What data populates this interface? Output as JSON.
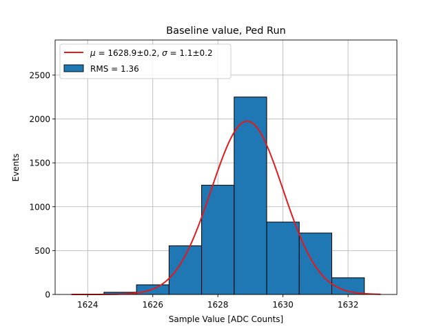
{
  "chart_data": {
    "type": "bar",
    "title": "Baseline value, Ped Run",
    "xlabel": "Sample Value [ADC Counts]",
    "ylabel": "Events",
    "xlim": [
      1623,
      1633.5
    ],
    "ylim": [
      0,
      2900
    ],
    "xticks": [
      1624,
      1626,
      1628,
      1630,
      1632
    ],
    "yticks": [
      0,
      500,
      1000,
      1500,
      2000,
      2500
    ],
    "grid": true,
    "legend_position": "top-left",
    "histogram": {
      "label": "RMS = 1.36",
      "bin_edges": [
        1624.5,
        1625.5,
        1626.5,
        1627.5,
        1628.5,
        1629.5,
        1630.5,
        1631.5,
        1632.5
      ],
      "counts": [
        25,
        110,
        555,
        1245,
        2250,
        825,
        700,
        190
      ],
      "color": "#1f77b4",
      "edgecolor": "#000000"
    },
    "fit": {
      "label": "μ = 1628.9±0.2, σ = 1.1±0.2",
      "label_parts": {
        "mu_symbol": "μ",
        "mu_value": " = 1628.9±0.2, ",
        "sigma_symbol": "σ",
        "sigma_value": " = 1.1±0.2"
      },
      "mu": 1628.9,
      "sigma": 1.1,
      "amplitude": 1975,
      "x_range": [
        1623.5,
        1633
      ],
      "color": "#e31a1c"
    }
  }
}
